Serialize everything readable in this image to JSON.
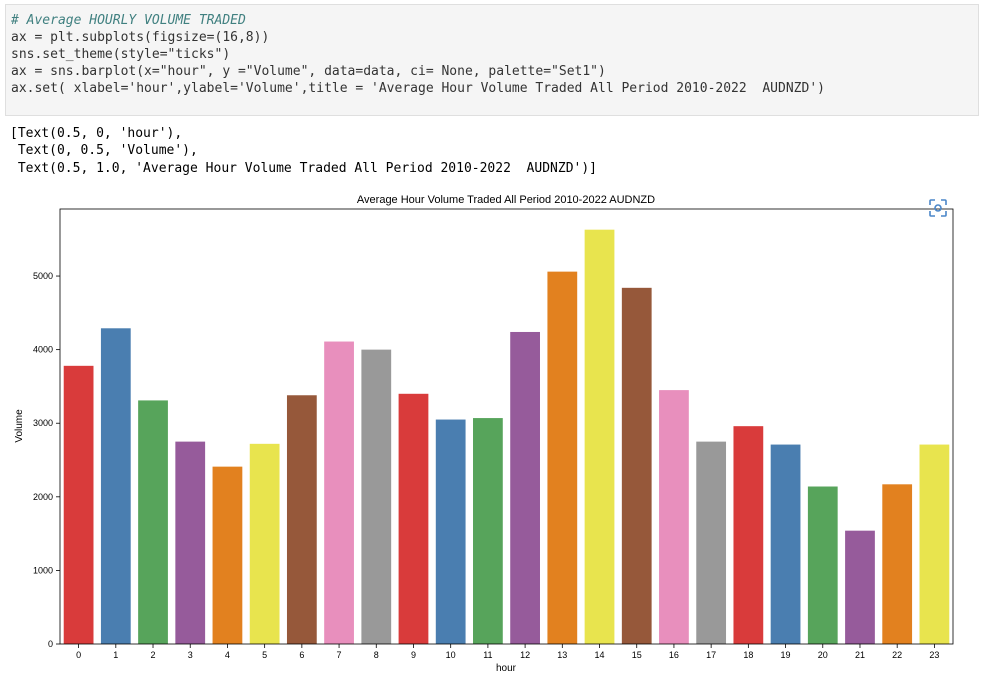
{
  "code_cell": {
    "lines": [
      "# Average HOURLY VOLUME TRADED",
      "ax = plt.subplots(figsize=(16,8))",
      "sns.set_theme(style=\"ticks\")",
      "ax = sns.barplot(x=\"hour\", y =\"Volume\", data=data, ci= None, palette=\"Set1\")",
      "ax.set( xlabel='hour',ylabel='Volume',title = 'Average Hour Volume Traded All Period 2010-2022  AUDNZD')"
    ]
  },
  "output": {
    "lines": [
      "[Text(0.5, 0, 'hour'),",
      " Text(0, 0.5, 'Volume'),",
      " Text(0.5, 1.0, 'Average Hour Volume Traded All Period 2010-2022  AUDNZD')]"
    ]
  },
  "expand_icon": "screenshot-expand-icon",
  "chart_data": {
    "type": "bar",
    "title": "Average Hour Volume Traded All Period 2010-2022  AUDNZD",
    "xlabel": "hour",
    "ylabel": "Volume",
    "categories": [
      "0",
      "1",
      "2",
      "3",
      "4",
      "5",
      "6",
      "7",
      "8",
      "9",
      "10",
      "11",
      "12",
      "13",
      "14",
      "15",
      "16",
      "17",
      "18",
      "19",
      "20",
      "21",
      "22",
      "23"
    ],
    "values": [
      3780,
      4290,
      3310,
      2750,
      2410,
      2720,
      3380,
      4110,
      4000,
      3400,
      3050,
      3070,
      4240,
      5060,
      5630,
      4840,
      3450,
      2750,
      2960,
      2710,
      2140,
      1540,
      2170,
      2710
    ],
    "yticks": [
      0,
      1000,
      2000,
      3000,
      4000,
      5000
    ],
    "ylim": [
      0,
      5911
    ],
    "grid": false,
    "palette": [
      "#d93b3b",
      "#4a7eb0",
      "#57a45b",
      "#965b9b",
      "#e2811f",
      "#e8e44e",
      "#96583a",
      "#e88fbd",
      "#999999"
    ]
  }
}
